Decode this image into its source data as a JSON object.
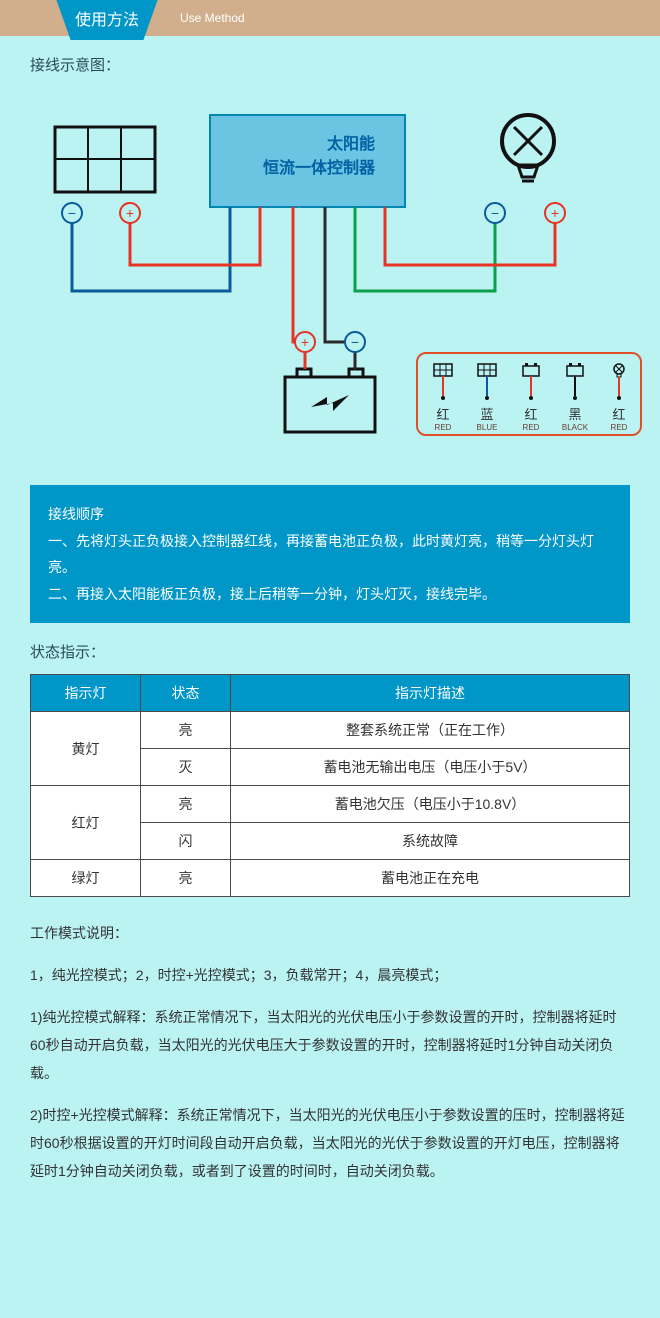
{
  "header": {
    "title": "使用方法",
    "subtitle": "Use Method",
    "bar_bg": "#d1af8d",
    "tab_bg": "#0096c7"
  },
  "page": {
    "bg": "#bbf3f3"
  },
  "diagram": {
    "title": "接线示意图：",
    "controller": {
      "line1": "太阳能",
      "line2": "恒流一体控制器",
      "fill": "#6bc4e2",
      "stroke": "#0086b3",
      "text_color": "#0061a3"
    },
    "colors": {
      "red_wire": "#e73323",
      "blue_wire": "#0a5a9c",
      "green_wire": "#0aa04a",
      "black_wire": "#2a2a2a",
      "plus": "#e73323",
      "minus": "#0a5a9c",
      "outline": "#111"
    },
    "legend": [
      {
        "icon": "panel",
        "cn": "红",
        "en": "RED",
        "wire": "#e73323"
      },
      {
        "icon": "panel",
        "cn": "蓝",
        "en": "BLUE",
        "wire": "#0a5a9c"
      },
      {
        "icon": "battery",
        "cn": "红",
        "en": "RED",
        "wire": "#e73323"
      },
      {
        "icon": "battery",
        "cn": "黑",
        "en": "BLACK",
        "wire": "#111"
      },
      {
        "icon": "bulb",
        "cn": "红",
        "en": "RED",
        "wire": "#e73323"
      }
    ]
  },
  "instructions": {
    "heading": "接线顺序",
    "step1": "一、先将灯头正负极接入控制器红线，再接蓄电池正负极，此时黄灯亮，稍等一分灯头灯亮。",
    "step2": "二、再接入太阳能板正负极，接上后稍等一分钟，灯头灯灭，接线完毕。",
    "bg": "#0096c7"
  },
  "status_table": {
    "title": "状态指示：",
    "header_bg": "#0096c7",
    "border": "#4a4a4a",
    "columns": [
      "指示灯",
      "状态",
      "指示灯描述"
    ],
    "rows": [
      {
        "led": "黄灯",
        "span": 2,
        "state": "亮",
        "desc": "整套系统正常（正在工作）"
      },
      {
        "led": "",
        "span": 0,
        "state": "灭",
        "desc": "蓄电池无输出电压（电压小于5V）"
      },
      {
        "led": "红灯",
        "span": 2,
        "state": "亮",
        "desc": "蓄电池欠压（电压小于10.8V）"
      },
      {
        "led": "",
        "span": 0,
        "state": "闪",
        "desc": "系统故障"
      },
      {
        "led": "绿灯",
        "span": 1,
        "state": "亮",
        "desc": "蓄电池正在充电"
      }
    ]
  },
  "modes": {
    "title": "工作模式说明：",
    "list": "1，纯光控模式；2，时控+光控模式；3，负载常开；4，晨亮模式；",
    "p1": "1)纯光控模式解释：系统正常情况下，当太阳光的光伏电压小于参数设置的开时，控制器将延时60秒自动开启负载，当太阳光的光伏电压大于参数设置的开时，控制器将延时1分钟自动关闭负载。",
    "p2": "2)时控+光控模式解释：系统正常情况下，当太阳光的光伏电压小于参数设置的压时，控制器将延时60秒根据设置的开灯时间段自动开启负载，当太阳光的光伏于参数设置的开灯电压，控制器将延时1分钟自动关闭负载，或者到了设置的时间时，自动关闭负载。"
  }
}
